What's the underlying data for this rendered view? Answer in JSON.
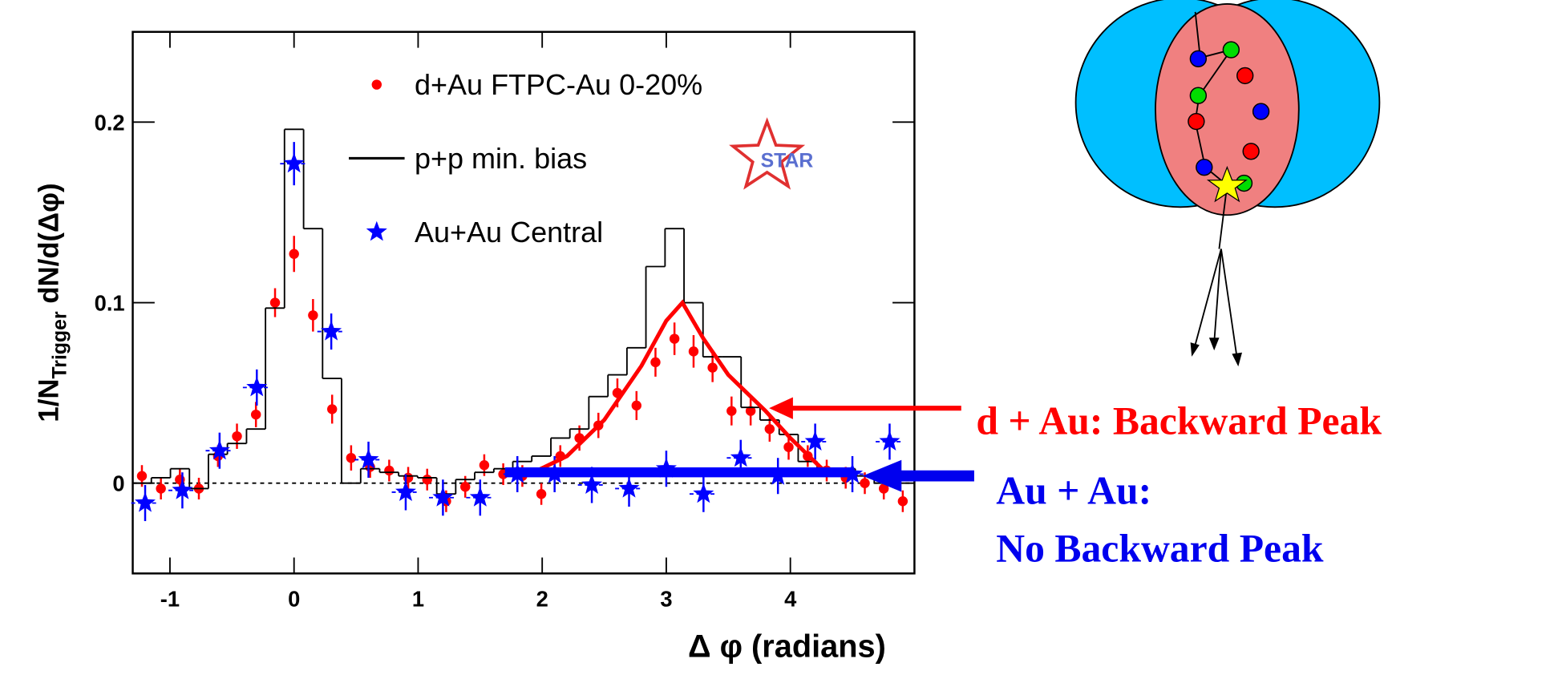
{
  "chart_data": {
    "type": "scatter",
    "xlabel": "Δ φ (radians)",
    "ylabel": [
      "1/N",
      "Trigger",
      " dN/d(Δφ)"
    ],
    "xlim": [
      -1.3,
      5.0
    ],
    "ylim": [
      -0.05,
      0.25
    ],
    "xticks": [
      -1,
      0,
      1,
      2,
      3,
      4
    ],
    "yticks": [
      0,
      0.1,
      0.2
    ],
    "logo": "STAR",
    "series": [
      {
        "name": "d+Au FTPC-Au 0-20%",
        "type": "scatter",
        "marker": "circle",
        "color": "#ff0000",
        "x": [
          -1.226,
          -1.073,
          -0.92,
          -0.767,
          -0.613,
          -0.46,
          -0.307,
          -0.153,
          0,
          0.153,
          0.307,
          0.46,
          0.613,
          0.767,
          0.92,
          1.073,
          1.226,
          1.38,
          1.533,
          1.686,
          1.84,
          1.993,
          2.146,
          2.3,
          2.453,
          2.606,
          2.76,
          2.913,
          3.066,
          3.22,
          3.373,
          3.526,
          3.68,
          3.833,
          3.986,
          4.14,
          4.293,
          4.446,
          4.6,
          4.753,
          4.906
        ],
        "values": [
          0.004,
          -0.003,
          0.002,
          -0.003,
          0.015,
          0.026,
          0.038,
          0.1,
          0.127,
          0.093,
          0.041,
          0.014,
          0.009,
          0.007,
          0.003,
          0.002,
          -0.01,
          -0.002,
          0.01,
          0.005,
          0.004,
          -0.006,
          0.015,
          0.025,
          0.032,
          0.05,
          0.043,
          0.067,
          0.08,
          0.073,
          0.064,
          0.04,
          0.04,
          0.03,
          0.02,
          0.015,
          0.007,
          0.003,
          0,
          -0.003,
          -0.01
        ],
        "errors": [
          0.006,
          0.006,
          0.006,
          0.006,
          0.006,
          0.007,
          0.007,
          0.008,
          0.01,
          0.009,
          0.008,
          0.007,
          0.006,
          0.006,
          0.006,
          0.006,
          0.006,
          0.006,
          0.006,
          0.006,
          0.006,
          0.006,
          0.006,
          0.007,
          0.007,
          0.008,
          0.008,
          0.008,
          0.009,
          0.009,
          0.008,
          0.008,
          0.008,
          0.007,
          0.007,
          0.006,
          0.006,
          0.006,
          0.006,
          0.006,
          0.006
        ]
      },
      {
        "name": "p+p min. bias",
        "type": "histogram",
        "color": "#000000",
        "bins": [
          -1.303,
          -1.15,
          -0.996,
          -0.843,
          -0.69,
          -0.537,
          -0.383,
          -0.23,
          -0.077,
          0.077,
          0.23,
          0.383,
          0.537,
          0.69,
          0.843,
          0.996,
          1.15,
          1.303,
          1.456,
          1.61,
          1.763,
          1.916,
          2.07,
          2.223,
          2.376,
          2.53,
          2.683,
          2.836,
          2.99,
          3.143,
          3.296,
          3.45,
          3.603,
          3.756,
          3.91,
          4.063,
          4.216,
          4.37,
          4.523,
          4.676,
          4.83,
          4.983
        ],
        "values": [
          0,
          0.003,
          0.008,
          -0.003,
          0.016,
          0.022,
          0.03,
          0.097,
          0.196,
          0.141,
          0.058,
          0,
          0.008,
          0.006,
          0.004,
          0.003,
          -0.006,
          0.002,
          0.006,
          0.008,
          0.012,
          0.015,
          0.025,
          0.03,
          0.048,
          0.06,
          0.075,
          0.12,
          0.141,
          0.1,
          0.07,
          0.07,
          0.042,
          0.035,
          0.027,
          0.012,
          0.008,
          0.008,
          0.004,
          0,
          0.002
        ]
      },
      {
        "name": "Au+Au Central",
        "type": "scatter",
        "marker": "star",
        "color": "#0000ff",
        "x": [
          -1.2,
          -0.9,
          -0.6,
          -0.3,
          0,
          0.3,
          0.6,
          0.9,
          1.2,
          1.5,
          1.8,
          2.1,
          2.4,
          2.7,
          3.0,
          3.3,
          3.6,
          3.9,
          4.2,
          4.5,
          4.8
        ],
        "values": [
          -0.011,
          -0.004,
          0.018,
          0.053,
          0.177,
          0.084,
          0.013,
          -0.005,
          -0.008,
          -0.008,
          0.005,
          0.005,
          -0.001,
          -0.003,
          0.008,
          -0.006,
          0.014,
          0.004,
          0.023,
          0.005,
          0.023
        ],
        "errors": [
          0.01,
          0.01,
          0.01,
          0.01,
          0.012,
          0.01,
          0.01,
          0.01,
          0.01,
          0.01,
          0.01,
          0.01,
          0.01,
          0.01,
          0.01,
          0.01,
          0.01,
          0.01,
          0.01,
          0.01,
          0.01
        ]
      }
    ],
    "fit": {
      "color": "#ff0000",
      "x": [
        1.9,
        2.2,
        2.5,
        2.8,
        3.0,
        3.13,
        3.3,
        3.5,
        3.8,
        4.0,
        4.3
      ],
      "y": [
        0.005,
        0.015,
        0.035,
        0.065,
        0.09,
        0.1,
        0.08,
        0.06,
        0.04,
        0.025,
        0.005
      ]
    },
    "band": {
      "color": "#0000ff",
      "x": [
        1.7,
        4.5
      ],
      "y": [
        0.006,
        0.006
      ]
    },
    "annotations": [
      {
        "lines": [
          "d + Au: Backward Peak"
        ],
        "color": "#ff0000"
      },
      {
        "lines": [
          "Au + Au:",
          "No Backward Peak"
        ],
        "color": "#0000ee"
      }
    ]
  }
}
